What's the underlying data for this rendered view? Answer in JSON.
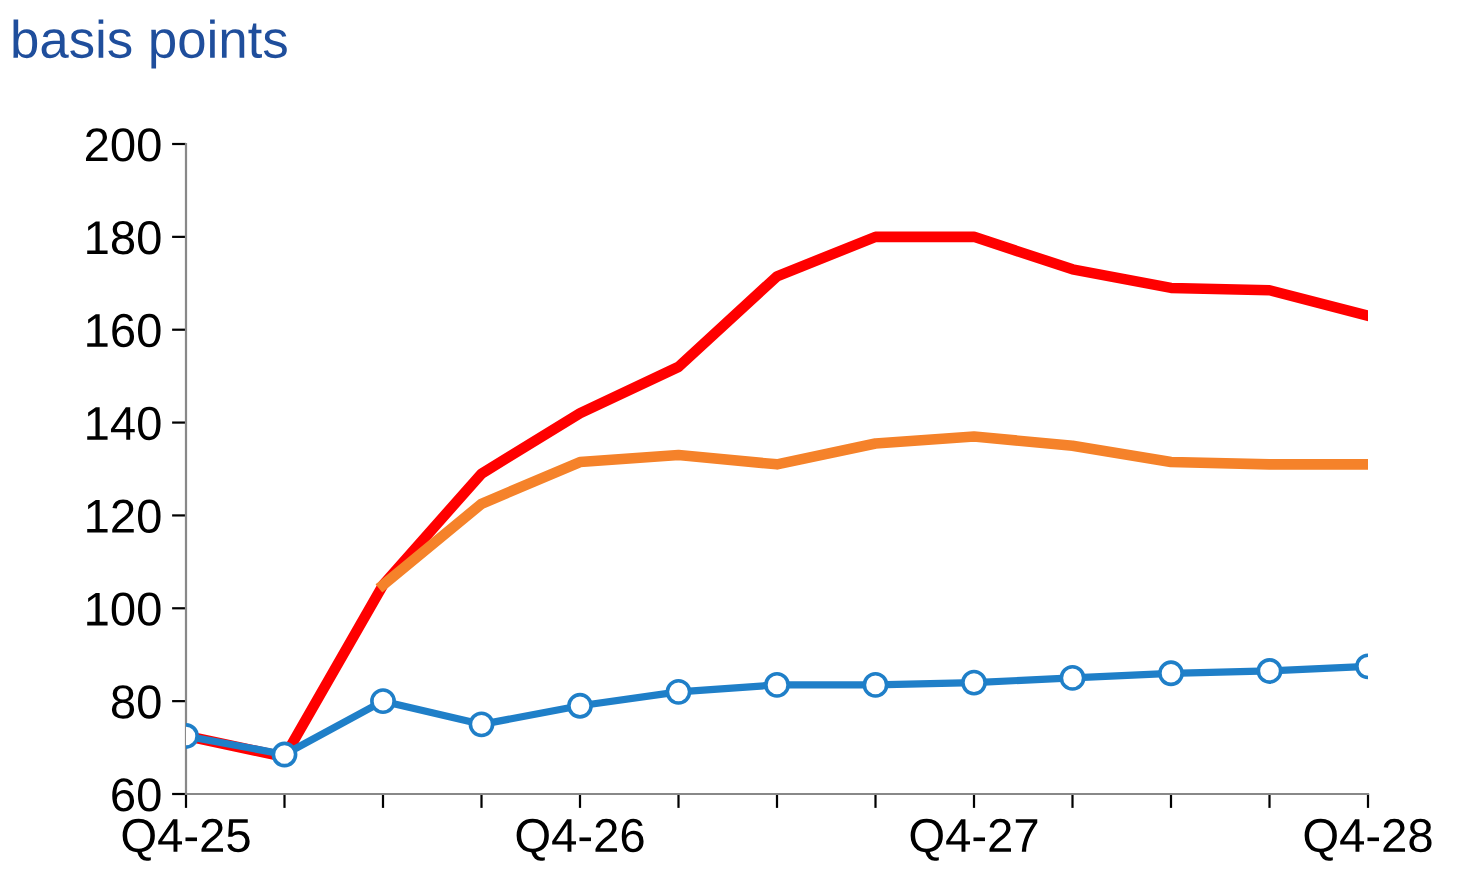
{
  "chart_data": {
    "type": "line",
    "title": "basis points",
    "categories": [
      "Q4-25",
      null,
      null,
      null,
      "Q4-26",
      null,
      null,
      null,
      "Q4-27",
      null,
      null,
      null,
      "Q4-28"
    ],
    "series": [
      {
        "color": "#ff0000",
        "marker": "none",
        "values": [
          72.5,
          68,
          105,
          129,
          142,
          152,
          171.5,
          180,
          180,
          173,
          169,
          168.5,
          163
        ]
      },
      {
        "color": "#f5822a",
        "marker": "none",
        "values": [
          null,
          null,
          105,
          122.5,
          131.5,
          133,
          131,
          135.5,
          137,
          135,
          131.5,
          131,
          131
        ]
      },
      {
        "color": "#1f7fc8",
        "marker": "circle",
        "values": [
          72.5,
          68.5,
          80,
          75,
          79,
          82,
          83.5,
          83.5,
          84,
          85,
          86,
          86.5,
          87.5
        ]
      }
    ],
    "ylim": [
      60,
      200
    ],
    "yticks": [
      60,
      80,
      100,
      120,
      140,
      160,
      180,
      200
    ],
    "grid": false,
    "legend": false
  }
}
